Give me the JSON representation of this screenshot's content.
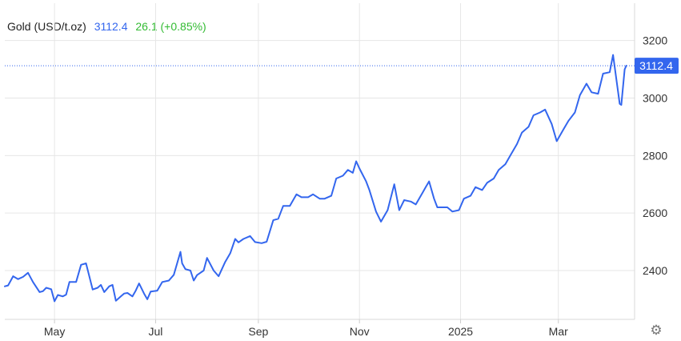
{
  "header": {
    "instrument": "Gold (USD/t.oz)",
    "price": "3112.4",
    "change": "26.1 (+0.85%)"
  },
  "colors": {
    "line": "#3366ee",
    "price_text": "#3366ee",
    "change_text": "#33bb33",
    "grid": "#e6e6e6",
    "axis_text": "#333333",
    "current_label_bg": "#3366ee"
  },
  "settings_icon": "gear-icon",
  "chart_data": {
    "type": "line",
    "title": "Gold (USD/t.oz)",
    "xlabel": "",
    "ylabel": "",
    "ylim": [
      2230,
      3330
    ],
    "y_ticks": [
      2400,
      2600,
      2800,
      3000,
      3200
    ],
    "x_ticks": [
      {
        "label": "May",
        "date": "2024-05-01"
      },
      {
        "label": "Jul",
        "date": "2024-07-01"
      },
      {
        "label": "Sep",
        "date": "2024-09-01"
      },
      {
        "label": "Nov",
        "date": "2024-11-01"
      },
      {
        "label": "2025",
        "date": "2025-01-01"
      },
      {
        "label": "Mar",
        "date": "2025-03-01"
      }
    ],
    "x_range": [
      "2024-04-01",
      "2025-04-16"
    ],
    "grid": true,
    "current_value": 3112.4,
    "current_value_label": "3112.4",
    "series": [
      {
        "name": "Gold (USD/t.oz)",
        "x": [
          "2024-04-01",
          "2024-04-03",
          "2024-04-06",
          "2024-04-09",
          "2024-04-12",
          "2024-04-15",
          "2024-04-18",
          "2024-04-22",
          "2024-04-24",
          "2024-04-26",
          "2024-04-29",
          "2024-05-01",
          "2024-05-03",
          "2024-05-06",
          "2024-05-08",
          "2024-05-10",
          "2024-05-14",
          "2024-05-17",
          "2024-05-20",
          "2024-05-22",
          "2024-05-24",
          "2024-05-27",
          "2024-05-29",
          "2024-05-31",
          "2024-06-03",
          "2024-06-05",
          "2024-06-07",
          "2024-06-10",
          "2024-06-12",
          "2024-06-14",
          "2024-06-17",
          "2024-06-19",
          "2024-06-21",
          "2024-06-24",
          "2024-06-26",
          "2024-06-28",
          "2024-07-02",
          "2024-07-05",
          "2024-07-09",
          "2024-07-12",
          "2024-07-16",
          "2024-07-17",
          "2024-07-19",
          "2024-07-22",
          "2024-07-24",
          "2024-07-26",
          "2024-07-30",
          "2024-08-01",
          "2024-08-05",
          "2024-08-08",
          "2024-08-12",
          "2024-08-15",
          "2024-08-18",
          "2024-08-20",
          "2024-08-23",
          "2024-08-27",
          "2024-08-30",
          "2024-09-03",
          "2024-09-06",
          "2024-09-10",
          "2024-09-13",
          "2024-09-16",
          "2024-09-20",
          "2024-09-24",
          "2024-09-27",
          "2024-10-01",
          "2024-10-04",
          "2024-10-08",
          "2024-10-11",
          "2024-10-15",
          "2024-10-18",
          "2024-10-22",
          "2024-10-25",
          "2024-10-28",
          "2024-10-30",
          "2024-11-01",
          "2024-11-05",
          "2024-11-07",
          "2024-11-11",
          "2024-11-14",
          "2024-11-18",
          "2024-11-22",
          "2024-11-25",
          "2024-11-28",
          "2024-12-02",
          "2024-12-05",
          "2024-12-09",
          "2024-12-11",
          "2024-12-13",
          "2024-12-16",
          "2024-12-18",
          "2024-12-20",
          "2024-12-24",
          "2024-12-27",
          "2024-12-31",
          "2025-01-03",
          "2025-01-07",
          "2025-01-10",
          "2025-01-14",
          "2025-01-17",
          "2025-01-21",
          "2025-01-24",
          "2025-01-28",
          "2025-01-31",
          "2025-02-04",
          "2025-02-07",
          "2025-02-11",
          "2025-02-14",
          "2025-02-18",
          "2025-02-21",
          "2025-02-25",
          "2025-02-28",
          "2025-03-04",
          "2025-03-07",
          "2025-03-11",
          "2025-03-14",
          "2025-03-18",
          "2025-03-21",
          "2025-03-25",
          "2025-03-28",
          "2025-04-01",
          "2025-04-03",
          "2025-04-07",
          "2025-04-08",
          "2025-04-10",
          "2025-04-11"
        ],
        "values": [
          2345,
          2348,
          2380,
          2370,
          2378,
          2392,
          2360,
          2325,
          2328,
          2340,
          2335,
          2293,
          2315,
          2310,
          2316,
          2360,
          2360,
          2420,
          2425,
          2380,
          2334,
          2340,
          2350,
          2325,
          2345,
          2350,
          2295,
          2310,
          2320,
          2322,
          2310,
          2330,
          2355,
          2320,
          2300,
          2327,
          2330,
          2360,
          2365,
          2385,
          2465,
          2425,
          2405,
          2400,
          2365,
          2384,
          2400,
          2444,
          2400,
          2380,
          2430,
          2460,
          2510,
          2498,
          2510,
          2520,
          2499,
          2495,
          2500,
          2575,
          2580,
          2625,
          2625,
          2665,
          2655,
          2655,
          2665,
          2650,
          2650,
          2660,
          2720,
          2730,
          2750,
          2740,
          2780,
          2755,
          2710,
          2680,
          2605,
          2570,
          2610,
          2700,
          2610,
          2645,
          2640,
          2630,
          2670,
          2690,
          2710,
          2650,
          2620,
          2620,
          2620,
          2605,
          2610,
          2650,
          2660,
          2690,
          2680,
          2705,
          2720,
          2750,
          2770,
          2800,
          2840,
          2880,
          2900,
          2940,
          2950,
          2960,
          2910,
          2850,
          2890,
          2920,
          2950,
          3010,
          3050,
          3020,
          3015,
          3085,
          3090,
          3150,
          2980,
          2976,
          3100,
          3112.4
        ]
      }
    ]
  }
}
